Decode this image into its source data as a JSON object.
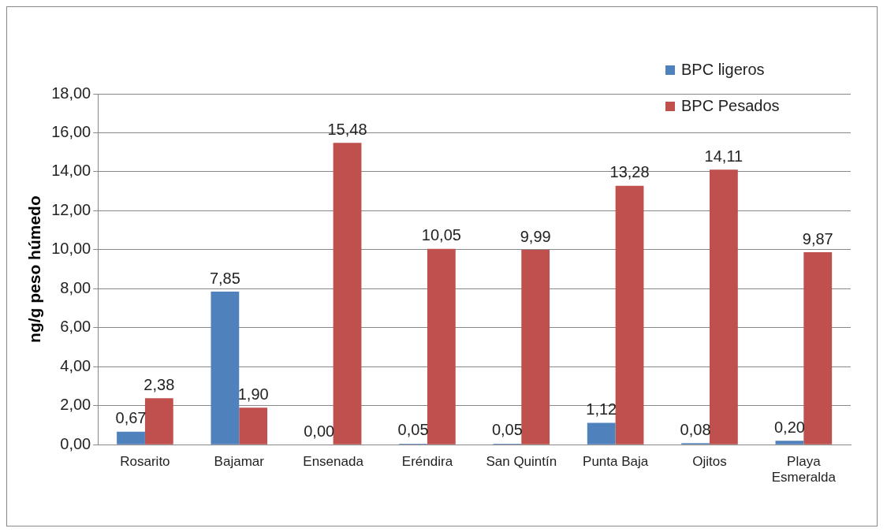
{
  "chart_data": {
    "type": "bar",
    "ylabel": "ng/g peso húmedo",
    "categories": [
      "Rosarito",
      "Bajamar",
      "Ensenada",
      "Eréndira",
      "San Quintín",
      "Punta Baja",
      "Ojitos",
      "Playa Esmeralda"
    ],
    "series": [
      {
        "name": "BPC ligeros",
        "color": "#4f81bd",
        "values": [
          0.67,
          7.85,
          0.0,
          0.05,
          0.05,
          1.12,
          0.08,
          0.2
        ],
        "value_labels": [
          "0,67",
          "7,85",
          "0,00",
          "0,05",
          "0,05",
          "1,12",
          "0,08",
          "0,20"
        ]
      },
      {
        "name": "BPC Pesados",
        "color": "#c0504d",
        "values": [
          2.38,
          1.9,
          15.48,
          10.05,
          9.99,
          13.28,
          14.11,
          9.87
        ],
        "value_labels": [
          "2,38",
          "1,90",
          "15,48",
          "10,05",
          "9,99",
          "13,28",
          "14,11",
          "9,87"
        ]
      }
    ],
    "ylim": [
      0,
      18
    ],
    "yticks": [
      {
        "value": 0,
        "label": "0,00"
      },
      {
        "value": 2,
        "label": "2,00"
      },
      {
        "value": 4,
        "label": "4,00"
      },
      {
        "value": 6,
        "label": "6,00"
      },
      {
        "value": 8,
        "label": "8,00"
      },
      {
        "value": 10,
        "label": "10,00"
      },
      {
        "value": 12,
        "label": "12,00"
      },
      {
        "value": 14,
        "label": "14,00"
      },
      {
        "value": 16,
        "label": "16,00"
      },
      {
        "value": 18,
        "label": "18,00"
      }
    ],
    "grid": "y",
    "legend": "top right"
  }
}
